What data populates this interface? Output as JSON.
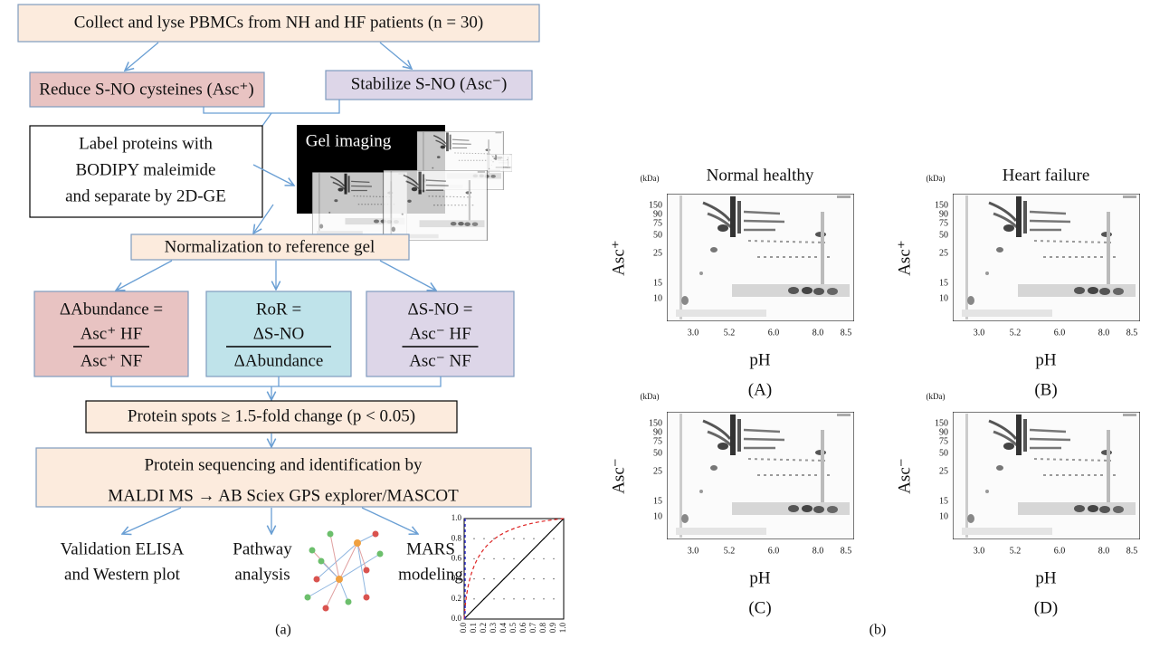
{
  "flowchart": {
    "collect": "Collect and lyse PBMCs from NH and HF patients (n = 30)",
    "reduce": "Reduce S-NO cysteines (Asc⁺)",
    "stabilize": "Stabilize S-NO (Asc⁻)",
    "label": [
      "Label proteins with",
      "BODIPY maleimide",
      "and separate by 2D-GE"
    ],
    "gel_imaging": "Gel imaging",
    "normalization": "Normalization to reference gel",
    "ratios": [
      {
        "lhs": "ΔAbundance =",
        "numerator": "Asc⁺ HF",
        "denominator": "Asc⁺ NF"
      },
      {
        "lhs": "RoR =",
        "numerator": "ΔS-NO",
        "denominator": "ΔAbundance"
      },
      {
        "lhs": "ΔS-NO =",
        "numerator": "Asc⁻ HF",
        "denominator": "Asc⁻ NF"
      }
    ],
    "spots": "Protein spots ≥ 1.5-fold change (p < 0.05)",
    "sequencing": [
      "Protein sequencing and identification by",
      "MALDI MS → AB Sciex GPS explorer/MASCOT"
    ],
    "outputs": [
      [
        "Validation ELISA",
        "and Western plot"
      ],
      [
        "Pathway",
        "analysis"
      ],
      [
        "MARS",
        "modeling"
      ]
    ],
    "roc": {
      "yticks": [
        "0.0",
        "0.2",
        "0.4",
        "0.6",
        "0.8",
        "1.0"
      ],
      "xticks": [
        "0.0",
        "0.1",
        "0.2",
        "0.3",
        "0.4",
        "0.5",
        "0.6",
        "0.7",
        "0.8",
        "0.9",
        "1.0"
      ]
    },
    "caption": "(a)"
  },
  "gels": {
    "unit": "(kDa)",
    "mw": [
      "150",
      "90",
      "75",
      "50",
      "25",
      "15",
      "10"
    ],
    "ph": [
      "3.0",
      "5.2",
      "6.0",
      "8.0",
      "8.5"
    ],
    "xlabel": "pH",
    "columns": [
      "Normal healthy",
      "Heart failure"
    ],
    "rows": [
      "Asc⁺",
      "Asc⁻"
    ],
    "panels": [
      "(A)",
      "(B)",
      "(C)",
      "(D)"
    ],
    "caption": "(b)"
  }
}
